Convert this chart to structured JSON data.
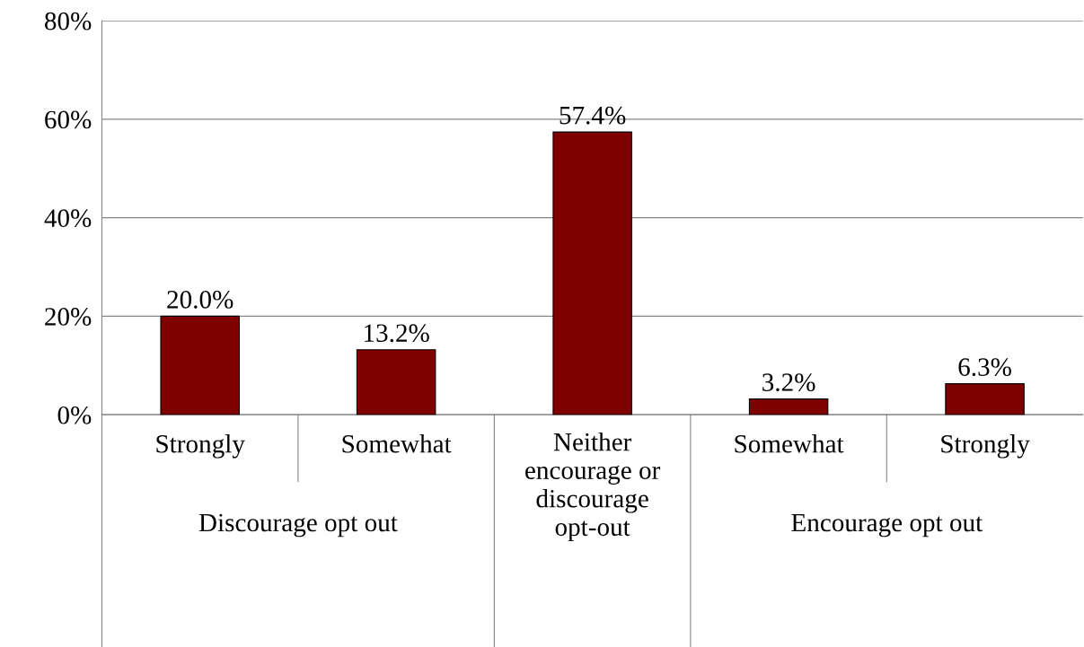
{
  "chart_data": {
    "type": "bar",
    "categories": [
      "Strongly",
      "Somewhat",
      "Neither encourage or discourage opt-out",
      "Somewhat",
      "Strongly"
    ],
    "values": [
      20.0,
      13.2,
      57.4,
      3.2,
      6.3
    ],
    "value_labels": [
      "20.0%",
      "13.2%",
      "57.4%",
      "3.2%",
      "6.3%"
    ],
    "color": "#800000",
    "annotations": [
      "Discourage opt out",
      "Encourage opt out"
    ],
    "ylim": [
      0,
      80
    ],
    "yticks": [
      {
        "value": 0,
        "label": "0%"
      },
      {
        "value": 20,
        "label": "20%"
      },
      {
        "value": 40,
        "label": "40%"
      },
      {
        "value": 60,
        "label": "60%"
      },
      {
        "value": 80,
        "label": "80%"
      }
    ],
    "grid": "y",
    "legend": false
  }
}
